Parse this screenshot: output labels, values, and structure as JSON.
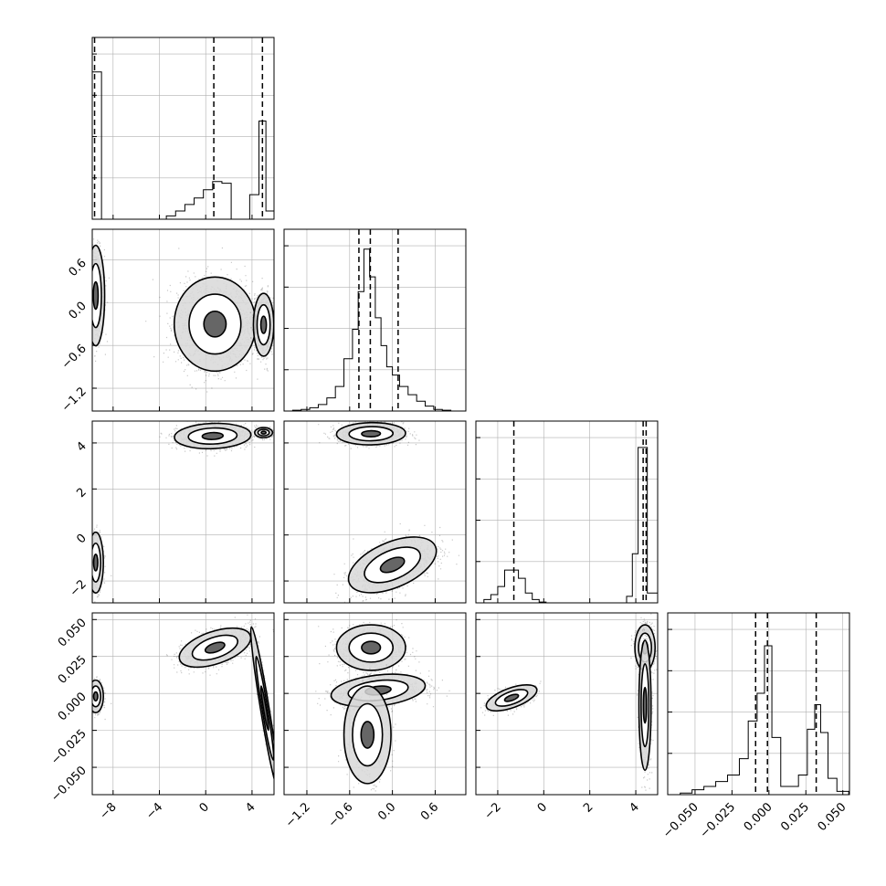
{
  "chart_data": {
    "type": "corner",
    "title": "",
    "parameters": [
      "",
      "",
      "",
      ""
    ],
    "ranges": [
      [
        -9.8,
        5.9
      ],
      [
        -1.52,
        1.03
      ],
      [
        -2.95,
        4.95
      ],
      [
        -0.0685,
        0.0545
      ]
    ],
    "ticks": [
      {
        "values": [
          -8,
          -4,
          0,
          4
        ],
        "labels": [
          "−8",
          "−4",
          "0",
          "4"
        ]
      },
      {
        "values": [
          -1.2,
          -0.6,
          0.0,
          0.6
        ],
        "labels": [
          "−1.2",
          "−0.6",
          "0.0",
          "0.6"
        ]
      },
      {
        "values": [
          -2,
          0,
          2,
          4
        ],
        "labels": [
          "−2",
          "0",
          "2",
          "4"
        ]
      },
      {
        "values": [
          -0.05,
          -0.025,
          0.0,
          0.025,
          0.05
        ],
        "labels": [
          "−0.050",
          "−0.025",
          "0.000",
          "0.025",
          "0.050"
        ]
      }
    ],
    "quantiles": [
      [
        -9.6,
        0.7,
        4.9
      ],
      [
        -0.47,
        -0.31,
        0.08
      ],
      [
        -1.3,
        4.32,
        4.45
      ],
      [
        -0.009,
        -0.001,
        0.032
      ]
    ],
    "histograms": [
      {
        "bins": [
          -9.8,
          -9.0,
          -8.2,
          -7.4,
          -6.6,
          -5.8,
          -5.0,
          -4.2,
          -3.4,
          -2.6,
          -1.8,
          -1.0,
          -0.2,
          0.6,
          1.4,
          2.2,
          3.0,
          3.8,
          4.6,
          5.2,
          5.9
        ],
        "counts": [
          0.9,
          0,
          0,
          0,
          0,
          0,
          0,
          0,
          0.02,
          0.05,
          0.09,
          0.13,
          0.18,
          0.23,
          0.22,
          0,
          0,
          0.15,
          0.6,
          0.05
        ]
      },
      {
        "bins": [
          -1.52,
          -1.4,
          -1.28,
          -1.16,
          -1.04,
          -0.92,
          -0.8,
          -0.68,
          -0.56,
          -0.48,
          -0.4,
          -0.32,
          -0.24,
          -0.16,
          -0.08,
          0.0,
          0.1,
          0.22,
          0.34,
          0.46,
          0.58,
          0.7,
          0.82,
          1.03
        ],
        "counts": [
          0,
          0.005,
          0.01,
          0.02,
          0.04,
          0.08,
          0.15,
          0.32,
          0.5,
          0.73,
          0.99,
          0.82,
          0.57,
          0.4,
          0.27,
          0.22,
          0.15,
          0.1,
          0.06,
          0.03,
          0.01,
          0.005,
          0
        ]
      },
      {
        "bins": [
          -2.95,
          -2.6,
          -2.3,
          -2.0,
          -1.7,
          -1.4,
          -1.1,
          -0.8,
          -0.5,
          -0.2,
          0.1,
          3.6,
          3.85,
          4.1,
          4.3,
          4.5,
          4.95
        ],
        "counts": [
          0,
          0.02,
          0.05,
          0.1,
          0.2,
          0.2,
          0.15,
          0.06,
          0.02,
          0.005,
          0,
          0.04,
          0.3,
          0.95,
          0.95,
          0.06
        ]
      },
      {
        "bins": [
          -0.068,
          -0.06,
          -0.052,
          -0.044,
          -0.036,
          -0.028,
          -0.02,
          -0.014,
          -0.008,
          -0.003,
          0.002,
          0.008,
          0.014,
          0.02,
          0.026,
          0.031,
          0.035,
          0.04,
          0.046,
          0.054
        ],
        "counts": [
          0,
          0.01,
          0.03,
          0.05,
          0.08,
          0.12,
          0.22,
          0.45,
          0.62,
          0.91,
          0.35,
          0.05,
          0.05,
          0.12,
          0.4,
          0.55,
          0.38,
          0.1,
          0.02
        ]
      }
    ],
    "panels_2d": [
      {
        "row": 1,
        "col": 0,
        "blobs": [
          {
            "cx": -9.5,
            "cy": 0.1,
            "sx": 0.35,
            "sy": 0.32,
            "rho": 0,
            "n": 700
          },
          {
            "cx": 0.8,
            "cy": -0.3,
            "sx": 1.6,
            "sy": 0.3,
            "rho": 0,
            "n": 1600
          },
          {
            "cx": 5.0,
            "cy": -0.31,
            "sx": 0.4,
            "sy": 0.2,
            "rho": 0,
            "n": 900
          }
        ]
      },
      {
        "row": 2,
        "col": 0,
        "blobs": [
          {
            "cx": -9.5,
            "cy": -1.2,
            "sx": 0.3,
            "sy": 0.6,
            "rho": 0,
            "n": 500
          },
          {
            "cx": 0.6,
            "cy": 4.3,
            "sx": 1.5,
            "sy": 0.25,
            "rho": 0.1,
            "n": 1400
          },
          {
            "cx": 5.0,
            "cy": 4.45,
            "sx": 0.35,
            "sy": 0.1,
            "rho": 0,
            "n": 700
          }
        ]
      },
      {
        "row": 2,
        "col": 1,
        "blobs": [
          {
            "cx": -0.3,
            "cy": 4.4,
            "sx": 0.22,
            "sy": 0.22,
            "rho": 0.05,
            "n": 1300
          },
          {
            "cx": 0.0,
            "cy": -1.3,
            "sx": 0.28,
            "sy": 0.55,
            "rho": 0.5,
            "n": 1300
          }
        ]
      },
      {
        "row": 3,
        "col": 0,
        "blobs": [
          {
            "cx": -9.5,
            "cy": -0.002,
            "sx": 0.3,
            "sy": 0.005,
            "rho": 0,
            "n": 500
          },
          {
            "cx": 0.8,
            "cy": 0.031,
            "sx": 1.4,
            "sy": 0.006,
            "rho": 0.5,
            "n": 1300
          },
          {
            "cx": 5.1,
            "cy": -0.01,
            "sx": 0.55,
            "sy": 0.025,
            "rho": -0.95,
            "n": 1300
          }
        ]
      },
      {
        "row": 3,
        "col": 1,
        "blobs": [
          {
            "cx": -0.3,
            "cy": 0.031,
            "sx": 0.22,
            "sy": 0.007,
            "rho": 0,
            "n": 1100
          },
          {
            "cx": -0.2,
            "cy": 0.002,
            "sx": 0.3,
            "sy": 0.005,
            "rho": 0.3,
            "n": 1200
          },
          {
            "cx": -0.35,
            "cy": -0.028,
            "sx": 0.15,
            "sy": 0.015,
            "rho": 0,
            "n": 500
          }
        ]
      },
      {
        "row": 3,
        "col": 2,
        "blobs": [
          {
            "cx": -1.4,
            "cy": -0.003,
            "sx": 0.5,
            "sy": 0.004,
            "rho": 0.6,
            "n": 700
          },
          {
            "cx": 4.4,
            "cy": 0.031,
            "sx": 0.2,
            "sy": 0.007,
            "rho": 0,
            "n": 800
          },
          {
            "cx": 4.4,
            "cy": -0.008,
            "sx": 0.12,
            "sy": 0.02,
            "rho": 0,
            "n": 800
          }
        ]
      }
    ],
    "grid": true,
    "colors": {
      "axis": "#000000",
      "grid": "#b0b0b0",
      "points": "#000000",
      "fill": "#d8d8d8"
    }
  }
}
